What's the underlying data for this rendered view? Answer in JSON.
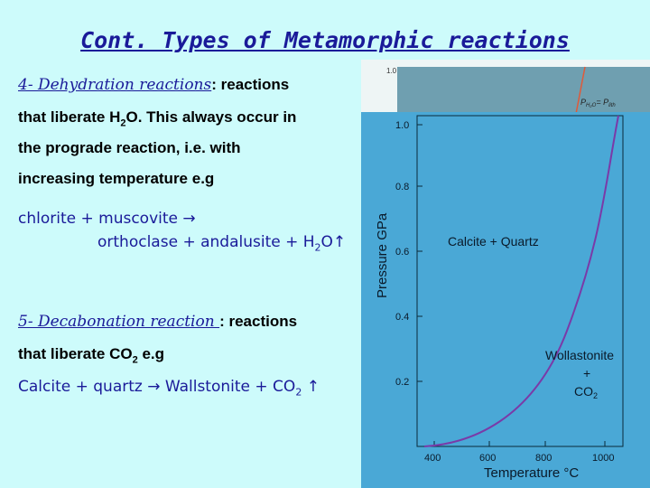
{
  "slide": {
    "title": "Cont. Types of Metamorphic reactions",
    "dehydration": {
      "heading": "4- Dehydration reactions",
      "colon": ": reactions",
      "line2a": "that liberate H",
      "line2sub": "2",
      "line2b": "O. This always occur in",
      "line3": "the prograde reaction, i.e. with",
      "line4": "increasing temperature  e.g",
      "reaction_line1": "chlorite + muscovite →",
      "reaction_line2a": "orthoclase + andalusite + H",
      "reaction_line2sub": "2",
      "reaction_line2b": "O↑"
    },
    "decarbonation": {
      "heading": "5- Decabonation reaction ",
      "colon": ": reactions",
      "line2a": "that liberate CO",
      "line2sub": "2",
      "line2b": " e.g",
      "reaction_a": "Calcite + quartz → Wallstonite + CO",
      "reaction_sub": "2",
      "reaction_b": " ↑"
    }
  },
  "figure": {
    "back_tick": "1.0",
    "back_label_a": "P",
    "back_label_sub1": "H₂O",
    "back_label_b": "= P",
    "back_label_sub2": "lith",
    "ylabel": "Pressure GPa",
    "xlabel_a": "Temperature  ",
    "xlabel_b": "°C",
    "y_ticks": [
      "1.0",
      "0.8",
      "0.6",
      "0.4",
      "0.2"
    ],
    "x_ticks": [
      "400",
      "600",
      "800",
      "1000"
    ],
    "field_upper": "Calcite + Quartz",
    "field_lower_1": "Wollastonite",
    "field_lower_2": "+",
    "field_lower_3": "CO",
    "field_lower_3sub": "2",
    "colors": {
      "plot_bg": "#4aa8d6",
      "back_bg": "#6f9fb0",
      "curve": "#7a3aa8",
      "back_curve": "#e05a3a"
    }
  }
}
